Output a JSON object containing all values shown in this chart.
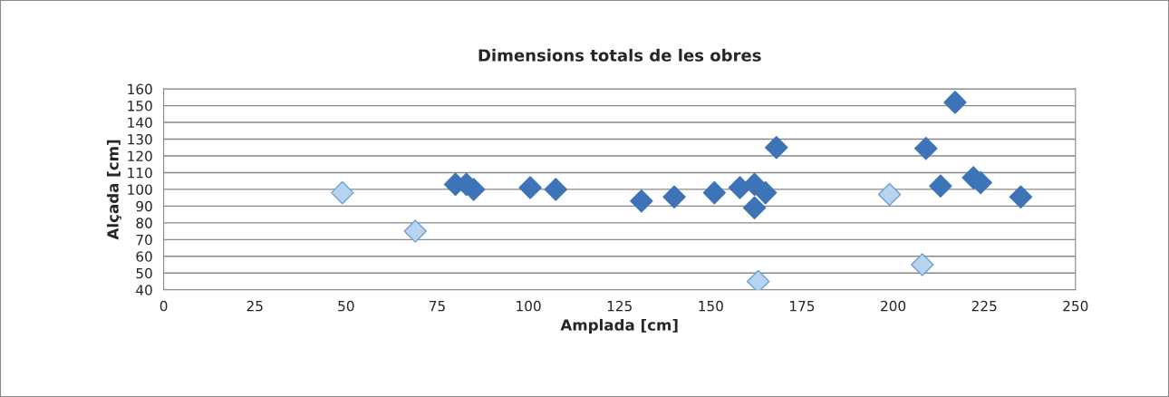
{
  "chart_data": {
    "type": "scatter",
    "title": "Dimensions totals de les obres",
    "xlabel": "Amplada [cm]",
    "ylabel": "Alçada [cm]",
    "xlim": [
      0,
      250
    ],
    "xticks": [
      0,
      25,
      50,
      75,
      100,
      125,
      150,
      175,
      200,
      225,
      250
    ],
    "ylim": [
      40,
      160
    ],
    "yticks": [
      40,
      50,
      60,
      70,
      80,
      90,
      100,
      110,
      120,
      130,
      140,
      150,
      160
    ],
    "grid": "y",
    "marker": "diamond",
    "series": [
      {
        "color": "#3d74b8",
        "x": [
          80,
          83,
          85,
          100.5,
          107.5,
          131,
          140,
          151,
          158,
          162,
          165,
          162,
          168,
          209,
          213,
          217,
          222,
          224,
          235
        ],
        "values": [
          103,
          103,
          100,
          101,
          100,
          93,
          95.5,
          98,
          101,
          103,
          98,
          89,
          125,
          124.5,
          102,
          152,
          107,
          104,
          95.5
        ]
      },
      {
        "color": "#b8d4ee",
        "x": [
          49,
          69,
          163,
          199,
          208
        ],
        "values": [
          98,
          75,
          45,
          97,
          55
        ]
      }
    ]
  }
}
